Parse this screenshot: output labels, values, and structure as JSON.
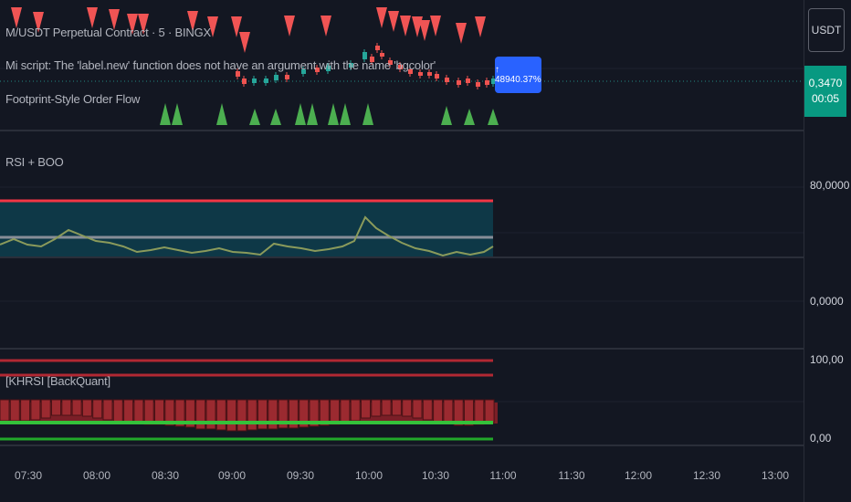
{
  "symbol": {
    "title": "M/USDT Perpetual Contract · 5 · BINGX",
    "error_text": "Mi script: The 'label.new' function does not have an argument with the name 'bgcolor'",
    "indicator_title": "Footprint-Style Order Flow"
  },
  "price_scale": {
    "currency_button": "USDT",
    "last_price": "0,3470",
    "countdown": "00:05",
    "chart_label": "↑ 48940.37%"
  },
  "rsi_pane": {
    "title": "RSI + BOO",
    "axis_upper": "80,0000",
    "axis_lower": "0,0000"
  },
  "khrsi_pane": {
    "title": "[KHRSI [BackQuant]",
    "axis_upper": "100,00",
    "axis_lower": "0,00"
  },
  "time_axis": [
    "07:30",
    "08:00",
    "08:30",
    "09:00",
    "09:30",
    "10:00",
    "10:30",
    "11:00",
    "11:30",
    "12:00",
    "12:30",
    "13:00"
  ],
  "colors": {
    "background": "#131722",
    "up": "#26a69a",
    "down": "#ef5350",
    "buy_triangle": "#4caf50",
    "sell_triangle": "#f05454",
    "rsi_line": "#8a9a5b",
    "label_blue": "#2962ff"
  }
}
